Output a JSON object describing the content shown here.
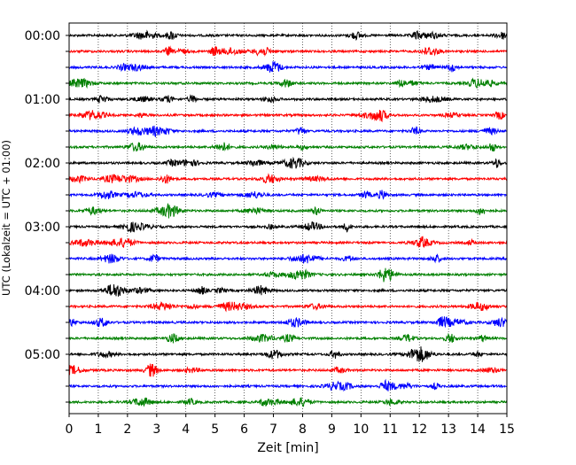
{
  "chart_data": {
    "type": "line",
    "title": "",
    "xlabel": "Zeit  [min]",
    "ylabel": "UTC (Lokalzeit = UTC + 01:00)",
    "xlim": [
      0,
      15
    ],
    "x_ticks": [
      0,
      1,
      2,
      3,
      4,
      5,
      6,
      7,
      8,
      9,
      10,
      11,
      12,
      13,
      14,
      15
    ],
    "x_tick_labels": [
      "0",
      "1",
      "2",
      "3",
      "4",
      "5",
      "6",
      "7",
      "8",
      "9",
      "10",
      "11",
      "12",
      "13",
      "14",
      "15"
    ],
    "y_ticks": [
      "00:00",
      "00:15",
      "00:30",
      "00:45",
      "01:00",
      "01:15",
      "01:30",
      "01:45",
      "02:00",
      "02:15",
      "02:30",
      "02:45",
      "03:00",
      "03:15",
      "03:30",
      "03:45",
      "04:00",
      "04:15",
      "04:30",
      "04:45",
      "05:00",
      "05:15",
      "05:30",
      "05:45"
    ],
    "y_tick_labels": [
      "00:00",
      "01:00",
      "02:00",
      "03:00",
      "04:00",
      "05:00"
    ],
    "grid": "vertical dotted",
    "legend": "none",
    "trace_colors": [
      "#000000",
      "#ff0000",
      "#0000ff",
      "#008000"
    ],
    "series": [
      {
        "start": "00:00",
        "color": "#000000"
      },
      {
        "start": "00:15",
        "color": "#ff0000"
      },
      {
        "start": "00:30",
        "color": "#0000ff"
      },
      {
        "start": "00:45",
        "color": "#008000"
      },
      {
        "start": "01:00",
        "color": "#000000"
      },
      {
        "start": "01:15",
        "color": "#ff0000"
      },
      {
        "start": "01:30",
        "color": "#0000ff"
      },
      {
        "start": "01:45",
        "color": "#008000"
      },
      {
        "start": "02:00",
        "color": "#000000"
      },
      {
        "start": "02:15",
        "color": "#ff0000"
      },
      {
        "start": "02:30",
        "color": "#0000ff"
      },
      {
        "start": "02:45",
        "color": "#008000"
      },
      {
        "start": "03:00",
        "color": "#000000"
      },
      {
        "start": "03:15",
        "color": "#ff0000"
      },
      {
        "start": "03:30",
        "color": "#0000ff"
      },
      {
        "start": "03:45",
        "color": "#008000"
      },
      {
        "start": "04:00",
        "color": "#000000"
      },
      {
        "start": "04:15",
        "color": "#ff0000"
      },
      {
        "start": "04:30",
        "color": "#0000ff"
      },
      {
        "start": "04:45",
        "color": "#008000"
      },
      {
        "start": "05:00",
        "color": "#000000"
      },
      {
        "start": "05:15",
        "color": "#ff0000"
      },
      {
        "start": "05:30",
        "color": "#0000ff"
      },
      {
        "start": "05:45",
        "color": "#008000"
      }
    ]
  }
}
